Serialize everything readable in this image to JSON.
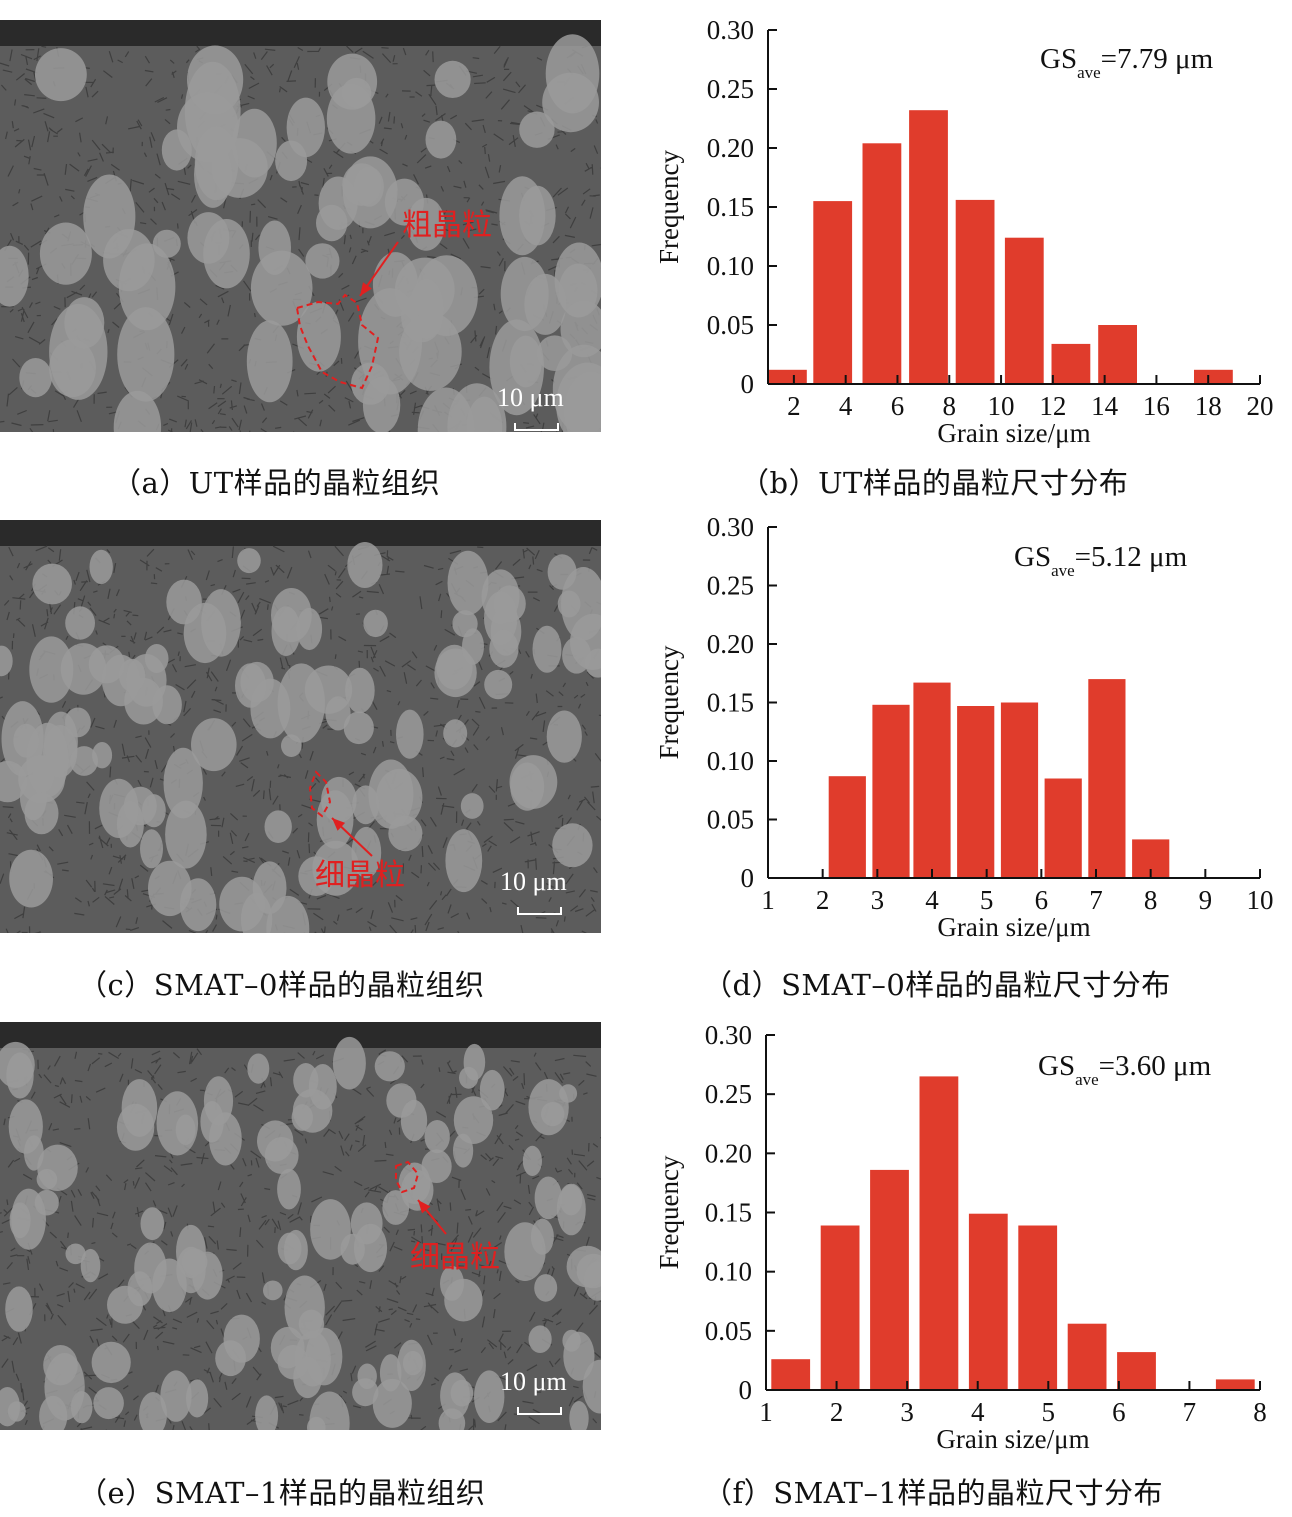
{
  "panels": [
    {
      "micro": {
        "caption": "（a）UT样品的晶粒组织",
        "label": "粗晶粒",
        "scale_bar": "10 μm"
      },
      "chart": {
        "caption": "（b）UT样品的晶粒尺寸分布",
        "annotation_base": "GS",
        "annotation_sub": "ave",
        "annotation_value": "=7.79 μm"
      }
    },
    {
      "micro": {
        "caption": "（c）SMAT–0样品的晶粒组织",
        "label": "细晶粒",
        "scale_bar": "10 μm"
      },
      "chart": {
        "caption": "（d）SMAT–0样品的晶粒尺寸分布",
        "annotation_base": "GS",
        "annotation_sub": "ave",
        "annotation_value": "=5.12 μm"
      }
    },
    {
      "micro": {
        "caption": "（e）SMAT–1样品的晶粒组织",
        "label": "细晶粒",
        "scale_bar": "10 μm"
      },
      "chart": {
        "caption": "（f）SMAT–1样品的晶粒尺寸分布",
        "annotation_base": "GS",
        "annotation_sub": "ave",
        "annotation_value": "=3.60 μm"
      }
    }
  ],
  "colors": {
    "bar": "#e03c2c",
    "annotation": "#e02020"
  },
  "chart_data": [
    {
      "type": "bar",
      "xlabel": "Grain size/μm",
      "ylabel": "Frequency",
      "xlim": [
        1,
        20
      ],
      "ylim": [
        0,
        0.3
      ],
      "xticks": [
        "2",
        "4",
        "6",
        "8",
        "10",
        "12",
        "14",
        "16",
        "18",
        "20"
      ],
      "yticks": [
        "0",
        "0.05",
        "0.10",
        "0.15",
        "0.20",
        "0.25",
        "0.30"
      ],
      "bin_width": 1.5,
      "x": [
        1.75,
        3.5,
        5.4,
        7.2,
        9.0,
        10.9,
        12.7,
        14.5,
        16.3,
        18.2
      ],
      "values": [
        0.012,
        0.155,
        0.204,
        0.232,
        0.156,
        0.124,
        0.034,
        0.05,
        0,
        0.012
      ]
    },
    {
      "type": "bar",
      "xlabel": "Grain size/μm",
      "ylabel": "Frequency",
      "xlim": [
        1,
        10
      ],
      "ylim": [
        0,
        0.3
      ],
      "xticks": [
        "1",
        "2",
        "3",
        "4",
        "5",
        "6",
        "7",
        "8",
        "9",
        "10"
      ],
      "yticks": [
        "0",
        "0.05",
        "0.10",
        "0.15",
        "0.20",
        "0.25",
        "0.30"
      ],
      "bin_width": 0.68,
      "x": [
        2.45,
        3.25,
        4.0,
        4.8,
        5.6,
        6.4,
        7.2,
        8.0
      ],
      "values": [
        0.087,
        0.148,
        0.167,
        0.147,
        0.15,
        0.085,
        0.17,
        0.033
      ]
    },
    {
      "type": "bar",
      "xlabel": "Grain size/μm",
      "ylabel": "Frequency",
      "xlim": [
        1,
        8
      ],
      "ylim": [
        0,
        0.3
      ],
      "xticks": [
        "1",
        "2",
        "3",
        "4",
        "5",
        "6",
        "7",
        "8"
      ],
      "yticks": [
        "0",
        "0.05",
        "0.10",
        "0.15",
        "0.20",
        "0.25",
        "0.30"
      ],
      "bin_width": 0.55,
      "x": [
        1.35,
        2.05,
        2.75,
        3.45,
        4.15,
        4.85,
        5.55,
        6.25,
        6.95,
        7.65
      ],
      "values": [
        0.026,
        0.139,
        0.186,
        0.265,
        0.149,
        0.139,
        0.056,
        0.032,
        0,
        0.009
      ]
    }
  ]
}
